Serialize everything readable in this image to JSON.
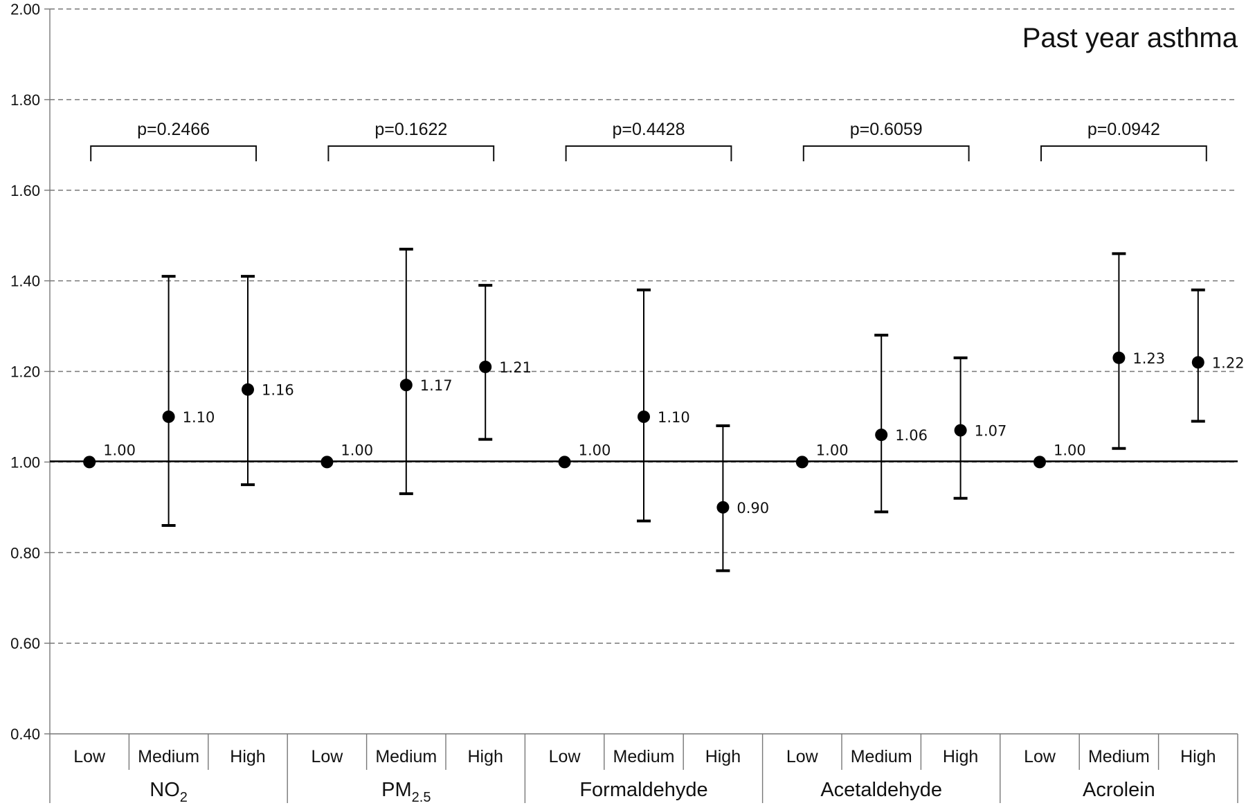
{
  "chart_data": {
    "type": "scatter",
    "title": "Past year asthma",
    "ylim": [
      0.4,
      2.0
    ],
    "yticks": [
      "0.40",
      "0.60",
      "0.80",
      "1.00",
      "1.20",
      "1.40",
      "1.60",
      "1.80",
      "2.00"
    ],
    "grid": true,
    "reference_line": 1.0,
    "groups": [
      {
        "name": "NO",
        "name_sub": "2",
        "p_value": "p=0.2466",
        "points": [
          {
            "category": "Low",
            "value": 1.0,
            "lower": null,
            "upper": null,
            "label": "1.00"
          },
          {
            "category": "Medium",
            "value": 1.1,
            "lower": 0.86,
            "upper": 1.41,
            "label": "1.10"
          },
          {
            "category": "High",
            "value": 1.16,
            "lower": 0.95,
            "upper": 1.41,
            "label": "1.16"
          }
        ]
      },
      {
        "name": "PM",
        "name_sub": "2.5",
        "p_value": "p=0.1622",
        "points": [
          {
            "category": "Low",
            "value": 1.0,
            "lower": null,
            "upper": null,
            "label": "1.00"
          },
          {
            "category": "Medium",
            "value": 1.17,
            "lower": 0.93,
            "upper": 1.47,
            "label": "1.17"
          },
          {
            "category": "High",
            "value": 1.21,
            "lower": 1.05,
            "upper": 1.39,
            "label": "1.21"
          }
        ]
      },
      {
        "name": "Formaldehyde",
        "name_sub": "",
        "p_value": "p=0.4428",
        "points": [
          {
            "category": "Low",
            "value": 1.0,
            "lower": null,
            "upper": null,
            "label": "1.00"
          },
          {
            "category": "Medium",
            "value": 1.1,
            "lower": 0.87,
            "upper": 1.38,
            "label": "1.10"
          },
          {
            "category": "High",
            "value": 0.9,
            "lower": 0.76,
            "upper": 1.08,
            "label": "0.90"
          }
        ]
      },
      {
        "name": "Acetaldehyde",
        "name_sub": "",
        "p_value": "p=0.6059",
        "points": [
          {
            "category": "Low",
            "value": 1.0,
            "lower": null,
            "upper": null,
            "label": "1.00"
          },
          {
            "category": "Medium",
            "value": 1.06,
            "lower": 0.89,
            "upper": 1.28,
            "label": "1.06"
          },
          {
            "category": "High",
            "value": 1.07,
            "lower": 0.92,
            "upper": 1.23,
            "label": "1.07"
          }
        ]
      },
      {
        "name": "Acrolein",
        "name_sub": "",
        "p_value": "p=0.0942",
        "points": [
          {
            "category": "Low",
            "value": 1.0,
            "lower": null,
            "upper": null,
            "label": "1.00"
          },
          {
            "category": "Medium",
            "value": 1.23,
            "lower": 1.03,
            "upper": 1.46,
            "label": "1.23"
          },
          {
            "category": "High",
            "value": 1.22,
            "lower": 1.09,
            "upper": 1.38,
            "label": "1.22"
          }
        ]
      }
    ]
  }
}
